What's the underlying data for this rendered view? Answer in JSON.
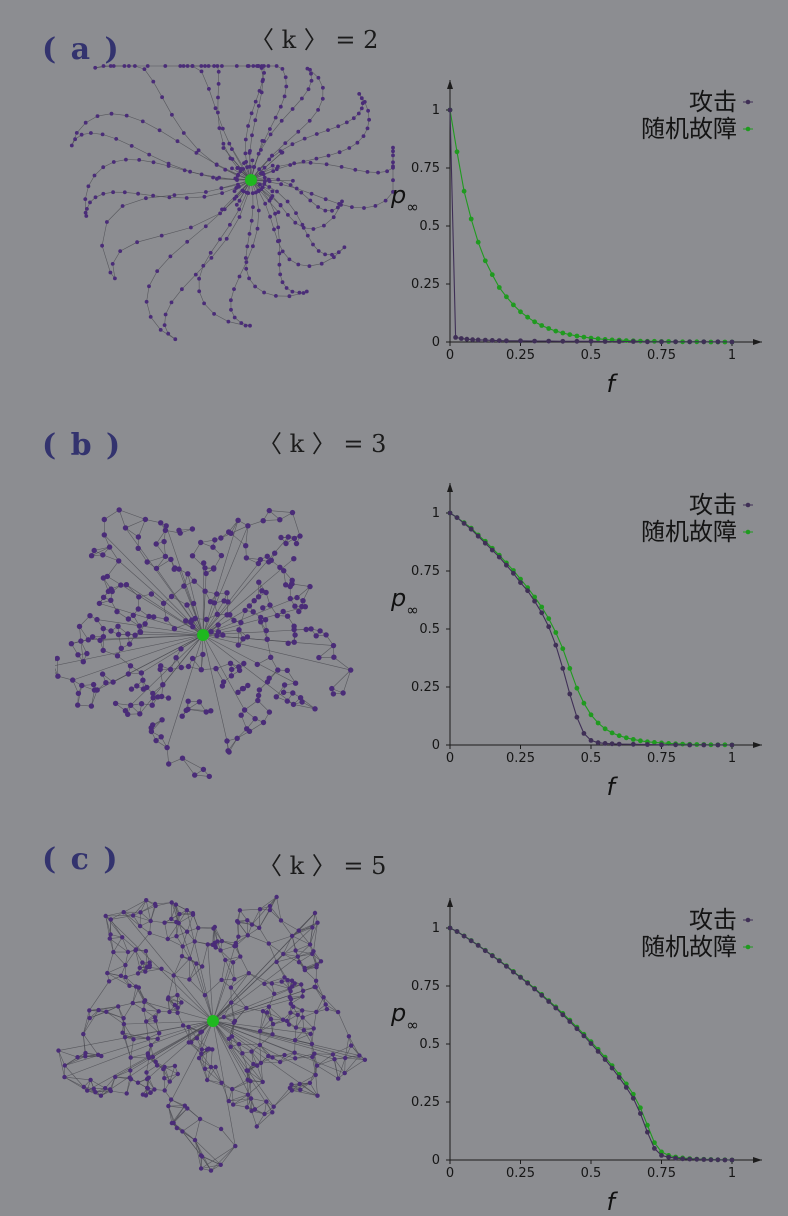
{
  "panels": [
    {
      "id": "a",
      "label": "( a )",
      "k_label": "〈 k 〉 = 2",
      "k": 2
    },
    {
      "id": "b",
      "label": "( b )",
      "k_label": "〈 k 〉 = 3",
      "k": 3
    },
    {
      "id": "c",
      "label": "( c )",
      "k_label": "〈 k 〉 = 5",
      "k": 5
    }
  ],
  "colors": {
    "background": "#8c8d91",
    "attack": "#3f2f56",
    "random": "#1f9a1f",
    "node": "#4a2c78",
    "hub": "#1fb81f",
    "edge": "#4a4a50",
    "axis": "#1c1c1c"
  },
  "chart_data": [
    {
      "type": "line",
      "panel": "a",
      "xlabel": "f",
      "ylabel": "p∞",
      "xlim": [
        0,
        1
      ],
      "ylim": [
        0,
        1
      ],
      "xticks": [
        "0",
        "0.25",
        "0.5",
        "0.75",
        "1"
      ],
      "yticks": [
        "0",
        "0.25",
        "0.5",
        "0.75",
        "1"
      ],
      "legend_position": "top-right",
      "series": [
        {
          "name": "攻击",
          "x": [
            0,
            0.02,
            0.04,
            0.06,
            0.08,
            0.1,
            0.125,
            0.15,
            0.175,
            0.2,
            0.25,
            0.3,
            0.35,
            0.4,
            0.45,
            0.5,
            0.55,
            0.6,
            0.65,
            0.7,
            0.75,
            0.8,
            0.85,
            0.9,
            0.95,
            1
          ],
          "y": [
            1,
            0.02,
            0.015,
            0.012,
            0.01,
            0.009,
            0.008,
            0.007,
            0.006,
            0.005,
            0.005,
            0.004,
            0.004,
            0.003,
            0.003,
            0.003,
            0.002,
            0.002,
            0.002,
            0.001,
            0.001,
            0.001,
            0.001,
            0.001,
            0.001,
            0
          ]
        },
        {
          "name": "随机故障",
          "x": [
            0,
            0.025,
            0.05,
            0.075,
            0.1,
            0.125,
            0.15,
            0.175,
            0.2,
            0.225,
            0.25,
            0.275,
            0.3,
            0.325,
            0.35,
            0.375,
            0.4,
            0.425,
            0.45,
            0.475,
            0.5,
            0.525,
            0.55,
            0.575,
            0.6,
            0.625,
            0.65,
            0.675,
            0.7,
            0.725,
            0.75,
            0.775,
            0.8,
            0.825,
            0.85,
            0.875,
            0.9,
            0.925,
            0.95,
            0.975,
            1
          ],
          "y": [
            1,
            0.82,
            0.65,
            0.53,
            0.43,
            0.35,
            0.29,
            0.235,
            0.195,
            0.16,
            0.13,
            0.107,
            0.087,
            0.071,
            0.058,
            0.047,
            0.039,
            0.032,
            0.026,
            0.021,
            0.017,
            0.014,
            0.011,
            0.009,
            0.008,
            0.006,
            0.005,
            0.004,
            0.003,
            0.003,
            0.002,
            0.002,
            0.001,
            0.001,
            0.001,
            0.001,
            0.001,
            0,
            0,
            0,
            0
          ]
        }
      ]
    },
    {
      "type": "line",
      "panel": "b",
      "xlabel": "f",
      "ylabel": "p∞",
      "xlim": [
        0,
        1
      ],
      "ylim": [
        0,
        1
      ],
      "xticks": [
        "0",
        "0.25",
        "0.5",
        "0.75",
        "1"
      ],
      "yticks": [
        "0",
        "0.25",
        "0.5",
        "0.75",
        "1"
      ],
      "legend_position": "top-right",
      "series": [
        {
          "name": "攻击",
          "x": [
            0,
            0.025,
            0.05,
            0.075,
            0.1,
            0.125,
            0.15,
            0.175,
            0.2,
            0.225,
            0.25,
            0.275,
            0.3,
            0.325,
            0.35,
            0.375,
            0.4,
            0.425,
            0.45,
            0.475,
            0.5,
            0.525,
            0.55,
            0.575,
            0.6,
            0.65,
            0.7,
            0.75,
            0.8,
            0.85,
            0.9,
            0.95,
            1
          ],
          "y": [
            1,
            0.98,
            0.955,
            0.93,
            0.9,
            0.87,
            0.84,
            0.81,
            0.775,
            0.74,
            0.7,
            0.665,
            0.62,
            0.57,
            0.51,
            0.43,
            0.33,
            0.22,
            0.12,
            0.05,
            0.02,
            0.01,
            0.007,
            0.005,
            0.004,
            0.003,
            0.002,
            0.001,
            0.001,
            0,
            0,
            0,
            0
          ]
        },
        {
          "name": "随机故障",
          "x": [
            0,
            0.025,
            0.05,
            0.075,
            0.1,
            0.125,
            0.15,
            0.175,
            0.2,
            0.225,
            0.25,
            0.275,
            0.3,
            0.325,
            0.35,
            0.375,
            0.4,
            0.425,
            0.45,
            0.475,
            0.5,
            0.525,
            0.55,
            0.575,
            0.6,
            0.625,
            0.65,
            0.675,
            0.7,
            0.725,
            0.75,
            0.775,
            0.8,
            0.825,
            0.85,
            0.875,
            0.9,
            0.925,
            0.95,
            0.975,
            1
          ],
          "y": [
            1,
            0.98,
            0.958,
            0.935,
            0.905,
            0.878,
            0.848,
            0.818,
            0.785,
            0.752,
            0.715,
            0.678,
            0.638,
            0.595,
            0.545,
            0.485,
            0.415,
            0.33,
            0.245,
            0.18,
            0.13,
            0.095,
            0.07,
            0.052,
            0.04,
            0.031,
            0.024,
            0.018,
            0.014,
            0.011,
            0.009,
            0.007,
            0.005,
            0.004,
            0.003,
            0.002,
            0.002,
            0.001,
            0.001,
            0.001,
            0
          ]
        }
      ]
    },
    {
      "type": "line",
      "panel": "c",
      "xlabel": "f",
      "ylabel": "p∞",
      "xlim": [
        0,
        1
      ],
      "ylim": [
        0,
        1
      ],
      "xticks": [
        "0",
        "0.25",
        "0.5",
        "0.75",
        "1"
      ],
      "yticks": [
        "0",
        "0.25",
        "0.5",
        "0.75",
        "1"
      ],
      "legend_position": "top-right",
      "series": [
        {
          "name": "攻击",
          "x": [
            0,
            0.025,
            0.05,
            0.075,
            0.1,
            0.125,
            0.15,
            0.175,
            0.2,
            0.225,
            0.25,
            0.275,
            0.3,
            0.325,
            0.35,
            0.375,
            0.4,
            0.425,
            0.45,
            0.475,
            0.5,
            0.525,
            0.55,
            0.575,
            0.6,
            0.625,
            0.65,
            0.675,
            0.7,
            0.725,
            0.75,
            0.775,
            0.8,
            0.825,
            0.85,
            0.875,
            0.9,
            0.925,
            0.95,
            0.975,
            1
          ],
          "y": [
            1,
            0.985,
            0.965,
            0.945,
            0.925,
            0.902,
            0.88,
            0.858,
            0.835,
            0.81,
            0.787,
            0.762,
            0.737,
            0.71,
            0.683,
            0.655,
            0.626,
            0.597,
            0.566,
            0.535,
            0.502,
            0.468,
            0.433,
            0.396,
            0.356,
            0.313,
            0.266,
            0.2,
            0.12,
            0.05,
            0.02,
            0.012,
            0.008,
            0.005,
            0.004,
            0.003,
            0.002,
            0.001,
            0.001,
            0,
            0
          ]
        },
        {
          "name": "随机故障",
          "x": [
            0,
            0.025,
            0.05,
            0.075,
            0.1,
            0.125,
            0.15,
            0.175,
            0.2,
            0.225,
            0.25,
            0.275,
            0.3,
            0.325,
            0.35,
            0.375,
            0.4,
            0.425,
            0.45,
            0.475,
            0.5,
            0.525,
            0.55,
            0.575,
            0.6,
            0.625,
            0.65,
            0.675,
            0.7,
            0.725,
            0.75,
            0.775,
            0.8,
            0.825,
            0.85,
            0.875,
            0.9,
            0.925,
            0.95,
            0.975,
            1
          ],
          "y": [
            1,
            0.985,
            0.966,
            0.946,
            0.926,
            0.904,
            0.882,
            0.86,
            0.837,
            0.813,
            0.789,
            0.765,
            0.74,
            0.714,
            0.687,
            0.66,
            0.632,
            0.603,
            0.573,
            0.542,
            0.51,
            0.477,
            0.443,
            0.407,
            0.369,
            0.328,
            0.283,
            0.225,
            0.15,
            0.075,
            0.035,
            0.02,
            0.013,
            0.009,
            0.006,
            0.004,
            0.003,
            0.002,
            0.001,
            0.001,
            0
          ]
        }
      ]
    }
  ]
}
